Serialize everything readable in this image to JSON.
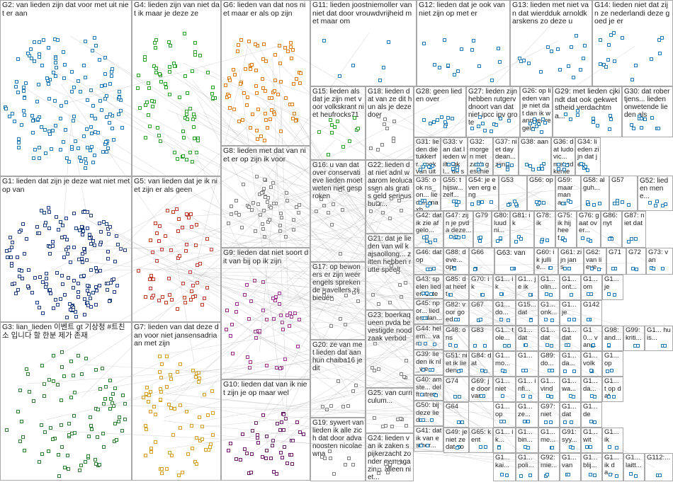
{
  "groups": [
    {
      "id": "G2",
      "label": "G2: van lieden zijn dat voor met uit niet er aan",
      "color": "#1f77b4",
      "nodes": 150
    },
    {
      "id": "G4",
      "label": "G4: lieden zijn van niet dat ik maar je deze ze",
      "color": "#2ca02c",
      "nodes": 75
    },
    {
      "id": "G6",
      "label": "G6: lieden van dat nos niet maar er als op zijn",
      "color": "#e07b00",
      "nodes": 80
    },
    {
      "id": "G11",
      "label": "G11: lieden joostniemoller van niet dat door vrouwdvrijheid met maar om",
      "color": "#1f77b4",
      "nodes": 6
    },
    {
      "id": "G12",
      "label": "G12: lieden dat je ook van niet zijn op met er",
      "color": "#1f77b4",
      "nodes": 15
    },
    {
      "id": "G13",
      "label": "G13: lieden met niet van dat wierdduk arnoldkarskens zo deze u",
      "color": "#1f77b4",
      "nodes": 16
    },
    {
      "id": "G14",
      "label": "G14: lieden niet dat zijn ze nederlandi deze goed je er",
      "color": "#1f77b4",
      "nodes": 16
    },
    {
      "id": "G1",
      "label": "G1: lieden dat zijn je deze wat niet met op van",
      "color": "#1f3f7f",
      "nodes": 170
    },
    {
      "id": "G5",
      "label": "G5: van lieden dat je ik niet zijn er als geen",
      "color": "#c0392b",
      "nodes": 60
    },
    {
      "id": "G8",
      "label": "G8: lieden met dat van niet er op zijn ik voor",
      "color": "#7f7f7f",
      "nodes": 50
    },
    {
      "id": "G15",
      "label": "G15: lieden als dat je zijn met voor volkskrant niet heufrocks71",
      "color": "#2ca02c",
      "nodes": 12
    },
    {
      "id": "G18",
      "label": "G18: lieden dat van ze dit hun als je deze door",
      "color": "#7f7f7f",
      "nodes": 10
    },
    {
      "id": "G28",
      "label": "G28: geen lieden over",
      "color": "#1f77b4",
      "nodes": 10
    },
    {
      "id": "G27",
      "label": "G27: lieden zijn hebben rutgervdnoort van dat niet ipcc ipv grote",
      "color": "#1f77b4",
      "nodes": 10
    },
    {
      "id": "G26",
      "label": "G26: op lieden van je niet dat dan ik wanneer regels",
      "color": "#1f77b4",
      "nodes": 10
    },
    {
      "id": "G29",
      "label": "G29: met lieden cjkindt dat ook gekwetstheid verdachtma...",
      "color": "#1f77b4",
      "nodes": 10
    },
    {
      "id": "G30",
      "label": "G30: dat robertjens... lieden onwetende lieden als",
      "color": "#1f77b4",
      "nodes": 10
    },
    {
      "id": "G31",
      "label": "G31: lieden dietukkerfr... ook van uiteinde...",
      "color": "#1f77b4",
      "nodes": 8
    },
    {
      "id": "G33",
      "label": "G33: van dat lieden wiltingkl... dit soort...",
      "color": "#1f77b4",
      "nodes": 8
    },
    {
      "id": "G32",
      "label": "G32: morgen met zal 't geschied...",
      "color": "#1f77b4",
      "nodes": 8
    },
    {
      "id": "G37",
      "label": "G37: niet daydean... zijn...",
      "color": "#1f77b4",
      "nodes": 7
    },
    {
      "id": "G38",
      "label": "G38: aan",
      "color": "#1f77b4",
      "nodes": 7
    },
    {
      "id": "G36",
      "label": "G36: dat ludovic... met cd kentek...",
      "color": "#1f77b4",
      "nodes": 7
    },
    {
      "id": "G34",
      "label": "G34: lieden zijn dat je...",
      "color": "#1f77b4",
      "nodes": 7
    },
    {
      "id": "G22",
      "label": "G22: lieden dat niet adnl waarom leolucassen als gratis geld seriousbuttr...",
      "color": "#7f7f7f",
      "nodes": 9
    },
    {
      "id": "G16",
      "label": "G16: u van dat over conservatieve lieden moet weten niet gesproken",
      "color": "#7f7f7f",
      "nodes": 9
    },
    {
      "id": "G35",
      "label": "G35: ook ns_on... lieden maxb...",
      "color": "#1f77b4",
      "nodes": 6
    },
    {
      "id": "G55",
      "label": "G55: thijsw... zelf...",
      "color": "#1f77b4",
      "nodes": 5
    },
    {
      "id": "G54",
      "label": "G54: je even erg eng",
      "color": "#1f77b4",
      "nodes": 5
    },
    {
      "id": "G53",
      "label": "G53",
      "color": "#1f77b4",
      "nodes": 5
    },
    {
      "id": "G56",
      "label": "G56: op",
      "color": "#1f77b4",
      "nodes": 5
    },
    {
      "id": "G59",
      "label": "G59: maar mana...",
      "color": "#1f77b4",
      "nodes": 5
    },
    {
      "id": "G58",
      "label": "G58: alguh...",
      "color": "#1f77b4",
      "nodes": 5
    },
    {
      "id": "G57",
      "label": "G57",
      "color": "#1f77b4",
      "nodes": 5
    },
    {
      "id": "G52",
      "label": "G52: lieden mene...",
      "color": "#1f77b4",
      "nodes": 5
    },
    {
      "id": "G9",
      "label": "G9: lieden dat niet soort dit van bij op ik zijn",
      "color": "#9b2d8e",
      "nodes": 45
    },
    {
      "id": "G42",
      "label": "G42: dat ik zie afgelo...",
      "color": "#1f77b4",
      "nodes": 5
    },
    {
      "id": "G47",
      "label": "G47: zijn je pvda deze...",
      "color": "#1f77b4",
      "nodes": 5
    },
    {
      "id": "G79",
      "label": "G79",
      "color": "#1f77b4",
      "nodes": 3
    },
    {
      "id": "G80",
      "label": "G80: luud ni...",
      "color": "#1f77b4",
      "nodes": 3
    },
    {
      "id": "G81",
      "label": "G81: ik",
      "color": "#1f77b4",
      "nodes": 3
    },
    {
      "id": "G78",
      "label": "G78: ik",
      "color": "#1f77b4",
      "nodes": 3
    },
    {
      "id": "G75",
      "label": "G75: ik hij heef...",
      "color": "#1f77b4",
      "nodes": 3
    },
    {
      "id": "G76",
      "label": "G76: gaat over...",
      "color": "#1f77b4",
      "nodes": 3
    },
    {
      "id": "G86",
      "label": "G86: nyt",
      "color": "#1f77b4",
      "nodes": 3
    },
    {
      "id": "G87",
      "label": "G87: niet dat",
      "color": "#1f77b4",
      "nodes": 3
    },
    {
      "id": "G17",
      "label": "G17: op bewoners er zijn weer engels sprekende travellers zij biedén",
      "color": "#7f7f7f",
      "nodes": 9
    },
    {
      "id": "G21",
      "label": "G21: dat je lieden van wil kajsaollong... zitten hebben rutte speelt",
      "color": "#7f7f7f",
      "nodes": 8
    },
    {
      "id": "G46",
      "label": "G46: dat op",
      "color": "#1f77b4",
      "nodes": 4
    },
    {
      "id": "G88",
      "label": "G88: deve... op",
      "color": "#1f77b4",
      "nodes": 3
    },
    {
      "id": "G66",
      "label": "G66",
      "color": "#1f77b4",
      "nodes": 3
    },
    {
      "id": "G63",
      "label": "G63: van",
      "color": "#1f77b4",
      "nodes": 3
    },
    {
      "id": "G60",
      "label": "G60: ik jullie...",
      "color": "#1f77b4",
      "nodes": 3
    },
    {
      "id": "G61",
      "label": "G61: zijn jans...",
      "color": "#1f77b4",
      "nodes": 3
    },
    {
      "id": "G62",
      "label": "G62: van lieve...",
      "color": "#1f77b4",
      "nodes": 3
    },
    {
      "id": "G71",
      "label": "G71",
      "color": "#1f77b4",
      "nodes": 3
    },
    {
      "id": "G72",
      "label": "G72",
      "color": "#1f77b4",
      "nodes": 3
    },
    {
      "id": "G73",
      "label": "G73: van",
      "color": "#1f77b4",
      "nodes": 3
    },
    {
      "id": "G43",
      "label": "G43: spelen lieden 1sted...",
      "color": "#1f77b4",
      "nodes": 4
    },
    {
      "id": "G70",
      "label": "G70: ik",
      "color": "#1f77b4",
      "nodes": 3
    },
    {
      "id": "G1a",
      "label": "G1... ik",
      "color": "#1f77b4",
      "nodes": 2
    },
    {
      "id": "G1b",
      "label": "G1... je ik",
      "color": "#1f77b4",
      "nodes": 2
    },
    {
      "id": "G1c",
      "label": "G1... olin...",
      "color": "#1f77b4",
      "nodes": 2
    },
    {
      "id": "G1d",
      "label": "G1... ont...",
      "color": "#1f77b4",
      "nodes": 2
    },
    {
      "id": "G1e",
      "label": "G1... om",
      "color": "#1f77b4",
      "nodes": 2
    },
    {
      "id": "G1f",
      "label": "G1... je",
      "color": "#1f77b4",
      "nodes": 2
    },
    {
      "id": "G85",
      "label": "G85: dat heeft",
      "color": "#1f77b4",
      "nodes": 3
    },
    {
      "id": "G45",
      "label": "G45: npor... lieden dan...",
      "color": "#1f77b4",
      "nodes": 4
    },
    {
      "id": "G7",
      "label": "G7: lieden van dat deze dan voor niet jansensadriaan met zijn",
      "color": "#d4a017",
      "nodes": 70
    },
    {
      "id": "G23",
      "label": "G23: boerkaqueen pvda bevestigde noodzaak verbod",
      "color": "#7f7f7f",
      "nodes": 8
    },
    {
      "id": "G67",
      "label": "G67",
      "color": "#1f77b4",
      "nodes": 3
    },
    {
      "id": "G1g",
      "label": "G1... do...",
      "color": "#1f77b4",
      "nodes": 2
    },
    {
      "id": "G15b",
      "label": "G15... dat",
      "color": "#1f77b4",
      "nodes": 2
    },
    {
      "id": "G1h",
      "label": "G1... onk...",
      "color": "#1f77b4",
      "nodes": 2
    },
    {
      "id": "G1i",
      "label": "G1... je",
      "color": "#1f77b4",
      "nodes": 2
    },
    {
      "id": "G142",
      "label": "G142",
      "color": "#1f77b4",
      "nodes": 2
    },
    {
      "id": "G82",
      "label": "G82: voor goed...",
      "color": "#1f77b4",
      "nodes": 3
    },
    {
      "id": "G1j",
      "label": "G1... tole...",
      "color": "#1f77b4",
      "nodes": 2
    },
    {
      "id": "G1k",
      "label": "G1... dat",
      "color": "#1f77b4",
      "nodes": 2
    },
    {
      "id": "G1l",
      "label": "G1... dat",
      "color": "#1f77b4",
      "nodes": 2
    },
    {
      "id": "G1m",
      "label": "G1... dat",
      "color": "#1f77b4",
      "nodes": 2
    },
    {
      "id": "G10h",
      "label": "G10... van...",
      "color": "#1f77b4",
      "nodes": 2
    },
    {
      "id": "G98",
      "label": "G98: and...",
      "color": "#1f77b4",
      "nodes": 2
    },
    {
      "id": "G99",
      "label": "G99: kriti...",
      "color": "#1f77b4",
      "nodes": 2
    },
    {
      "id": "G1n",
      "label": "G1... huis...",
      "color": "#1f77b4",
      "nodes": 2
    },
    {
      "id": "G44",
      "label": "G44: helem... van",
      "color": "#1f77b4",
      "nodes": 4
    },
    {
      "id": "G48",
      "label": "G48: ons",
      "color": "#1f77b4",
      "nodes": 4
    },
    {
      "id": "G83",
      "label": "G83",
      "color": "#1f77b4",
      "nodes": 3
    },
    {
      "id": "G20",
      "label": "G20: ze van met lieden dat aan hun chaiba16 je dit",
      "color": "#7f7f7f",
      "nodes": 8
    },
    {
      "id": "G25",
      "label": "G25: van curriculum...",
      "color": "#7f7f7f",
      "nodes": 8
    },
    {
      "id": "G68",
      "label": "G68",
      "color": "#1f77b4",
      "nodes": 3
    },
    {
      "id": "G1o",
      "label": "G1... mo...",
      "color": "#1f77b4",
      "nodes": 2
    },
    {
      "id": "G1p",
      "label": "G1...",
      "color": "#1f77b4",
      "nodes": 2
    },
    {
      "id": "G89",
      "label": "G89: do...",
      "color": "#1f77b4",
      "nodes": 2
    },
    {
      "id": "G1q",
      "label": "G1... da...",
      "color": "#1f77b4",
      "nodes": 2
    },
    {
      "id": "G1r",
      "label": "G1... volk",
      "color": "#1f77b4",
      "nodes": 2
    },
    {
      "id": "G1s",
      "label": "G1... op",
      "color": "#1f77b4",
      "nodes": 2
    },
    {
      "id": "G10",
      "label": "G10: lieden dat van ik niet zijn je op maar wel",
      "color": "#6a1b6a",
      "nodes": 45
    },
    {
      "id": "G39",
      "label": "G39: lieden ik nl_we...",
      "color": "#1f77b4",
      "nodes": 4
    },
    {
      "id": "G51",
      "label": "G51: niet ik lieden",
      "color": "#1f77b4",
      "nodes": 4
    },
    {
      "id": "G84",
      "label": "G84: dat",
      "color": "#1f77b4",
      "nodes": 3
    },
    {
      "id": "G1t",
      "label": "G1... niet",
      "color": "#1f77b4",
      "nodes": 2
    },
    {
      "id": "G1u",
      "label": "G1... infi...",
      "color": "#1f77b4",
      "nodes": 2
    },
    {
      "id": "G1v",
      "label": "G1... vind",
      "color": "#1f77b4",
      "nodes": 2
    },
    {
      "id": "G1w",
      "label": "G1... wa...",
      "color": "#1f77b4",
      "nodes": 2
    },
    {
      "id": "G1x",
      "label": "G1... da...",
      "color": "#1f77b4",
      "nodes": 2
    },
    {
      "id": "G1y",
      "label": "G1... t op dat",
      "color": "#1f77b4",
      "nodes": 2
    },
    {
      "id": "G19",
      "label": "G19: sywert van lieden ik alle zich dat door advanoosten nicolaewna",
      "color": "#7f7f7f",
      "nodes": 8
    },
    {
      "id": "G40",
      "label": "G40: amste... delft utrech...",
      "color": "#1f77b4",
      "nodes": 4
    },
    {
      "id": "G74",
      "label": "G74",
      "color": "#1f77b4",
      "nodes": 3
    },
    {
      "id": "G69",
      "label": "G69: je door van",
      "color": "#1f77b4",
      "nodes": 3
    },
    {
      "id": "G10i",
      "label": "G1... op",
      "color": "#1f77b4",
      "nodes": 2
    },
    {
      "id": "G1z",
      "label": "G1... ze...",
      "color": "#1f77b4",
      "nodes": 2
    },
    {
      "id": "G97",
      "label": "G97: niet",
      "color": "#1f77b4",
      "nodes": 2
    },
    {
      "id": "G1aa",
      "label": "G1... dat",
      "color": "#1f77b4",
      "nodes": 2
    },
    {
      "id": "G1ab",
      "label": "G1... de",
      "color": "#1f77b4",
      "nodes": 2
    },
    {
      "id": "G24",
      "label": "G24: lieden van ik zaken spijkerzacht zonder ewmagazin... alleen niet...",
      "color": "#7f7f7f",
      "nodes": 8
    },
    {
      "id": "G50",
      "label": "G50: bij deze liede...",
      "color": "#1f77b4",
      "nodes": 4
    },
    {
      "id": "G64",
      "label": "G64",
      "color": "#1f77b4",
      "nodes": 3
    },
    {
      "id": "G1ac",
      "label": "G1... ik...",
      "color": "#1f77b4",
      "nodes": 2
    },
    {
      "id": "G1ad",
      "label": "G1... bin...",
      "color": "#1f77b4",
      "nodes": 2
    },
    {
      "id": "G1ae",
      "label": "G1... me...",
      "color": "#1f77b4",
      "nodes": 2
    },
    {
      "id": "G91",
      "label": "G91: syy...",
      "color": "#1f77b4",
      "nodes": 2
    },
    {
      "id": "G1af",
      "label": "G1... wit",
      "color": "#1f77b4",
      "nodes": 2
    },
    {
      "id": "G1ag",
      "label": "G1... ik",
      "color": "#1f77b4",
      "nodes": 2
    },
    {
      "id": "G41",
      "label": "G41: dat ik van esther...",
      "color": "#1f77b4",
      "nodes": 4
    },
    {
      "id": "G49",
      "label": "G49: je niet ze dat voor...",
      "color": "#1f77b4",
      "nodes": 4
    },
    {
      "id": "G65",
      "label": "G65: kent",
      "color": "#1f77b4",
      "nodes": 3
    },
    {
      "id": "G1ah",
      "label": "G1... kai...",
      "color": "#1f77b4",
      "nodes": 2
    },
    {
      "id": "G1ai",
      "label": "G1... poli...",
      "color": "#1f77b4",
      "nodes": 2
    },
    {
      "id": "G92",
      "label": "G92: mie...",
      "color": "#1f77b4",
      "nodes": 2
    },
    {
      "id": "G1aj",
      "label": "G1... van",
      "color": "#1f77b4",
      "nodes": 2
    },
    {
      "id": "G1ak",
      "label": "G1... blij...",
      "color": "#1f77b4",
      "nodes": 2
    },
    {
      "id": "G1al",
      "label": "G1... ik da...",
      "color": "#1f77b4",
      "nodes": 2
    },
    {
      "id": "G1am",
      "label": "G1... laitt...",
      "color": "#1f77b4",
      "nodes": 2
    },
    {
      "id": "G112",
      "label": "G112:...",
      "color": "#1f77b4",
      "nodes": 2
    },
    {
      "id": "G3",
      "label": "G3: lian_lieden 이벤트 gt 기상청 #트친소 입니다 할 한분 제가 존재",
      "color": "#2e7d32",
      "nodes": 90
    }
  ]
}
